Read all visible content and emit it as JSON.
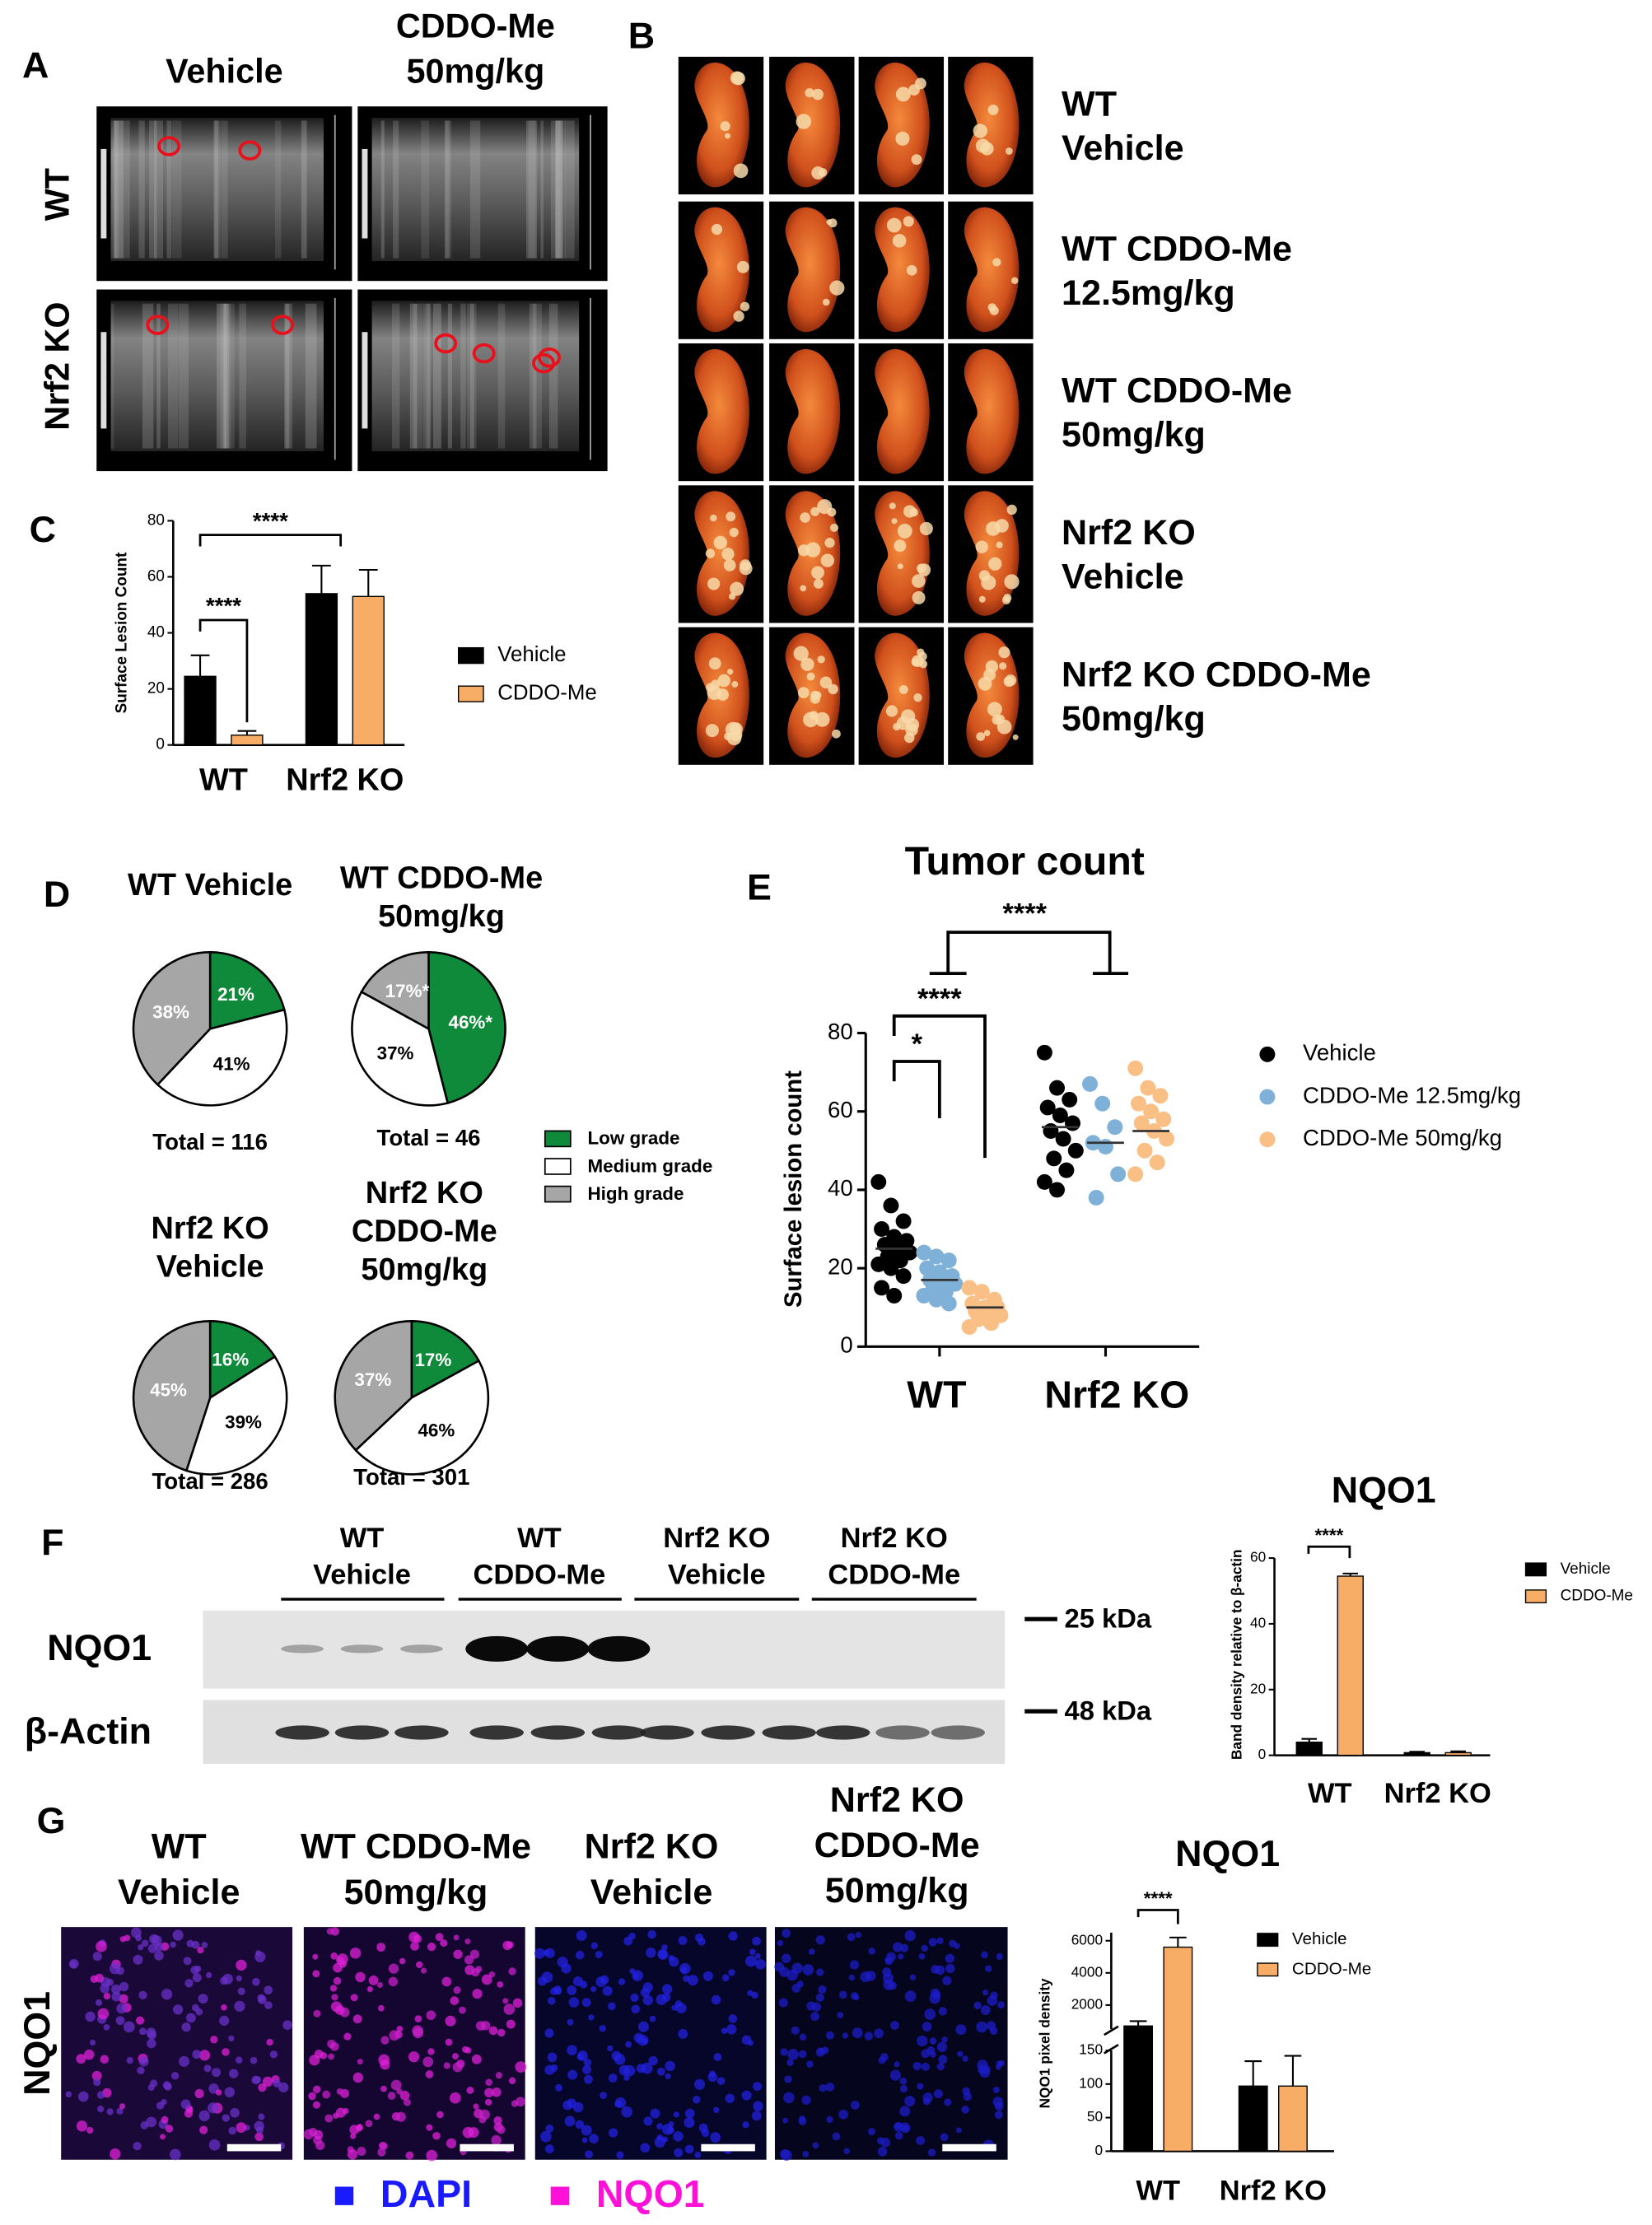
{
  "figure": {
    "panel_letters": [
      "A",
      "B",
      "C",
      "D",
      "E",
      "F",
      "G"
    ],
    "panel_a": {
      "columns": [
        [
          "Vehicle"
        ],
        [
          "CDDO-Me",
          "50mg/kg"
        ]
      ],
      "rows": [
        "WT",
        "Nrf2 KO"
      ]
    },
    "panel_b": {
      "rows": [
        [
          "WT",
          "Vehicle"
        ],
        [
          "WT CDDO-Me",
          "12.5mg/kg"
        ],
        [
          "WT CDDO-Me",
          "50mg/kg"
        ],
        [
          "Nrf2 KO",
          "Vehicle"
        ],
        [
          "Nrf2 KO CDDO-Me",
          "50mg/kg"
        ]
      ]
    },
    "panel_f": {
      "groups": [
        [
          "WT",
          "Vehicle"
        ],
        [
          "WT",
          "CDDO-Me"
        ],
        [
          "Nrf2 KO",
          "Vehicle"
        ],
        [
          "Nrf2 KO",
          "CDDO-Me"
        ]
      ],
      "rows": [
        "NQO1",
        "β-Actin"
      ],
      "markers": [
        "25 kDa",
        "48 kDa"
      ]
    },
    "panel_g": {
      "columns": [
        [
          "WT",
          "Vehicle"
        ],
        [
          "WT CDDO-Me",
          "50mg/kg"
        ],
        [
          "Nrf2 KO",
          "Vehicle"
        ],
        [
          "Nrf2 KO",
          "CDDO-Me",
          "50mg/kg"
        ]
      ],
      "row": "NQO1",
      "legend": [
        {
          "name": "DAPI",
          "color": "#1a1aff"
        },
        {
          "name": "NQO1",
          "color": "#ff10d8"
        }
      ]
    }
  },
  "chart_data": [
    {
      "type": "bar",
      "ylabel": "Surface Lesion Count",
      "categories": [
        "WT",
        "Nrf2 KO"
      ],
      "ylim": [
        0,
        80
      ],
      "yticks": [
        0,
        20,
        40,
        60,
        80
      ],
      "series": [
        {
          "name": "Vehicle",
          "color": "#000000",
          "values": [
            24.5,
            54
          ],
          "errors": [
            7.5,
            10
          ]
        },
        {
          "name": "CDDO-Me",
          "color": "#f8ad66",
          "values": [
            3.5,
            53
          ],
          "errors": [
            1.5,
            9.5
          ]
        }
      ],
      "annotations": [
        "****",
        "****"
      ]
    },
    {
      "type": "pie",
      "categories": [
        "Low grade",
        "Medium grade",
        "High grade"
      ],
      "colors": [
        "#0e8a3a",
        "#ffffff",
        "#a6a6a7"
      ],
      "pies": [
        {
          "title": [
            "WT Vehicle"
          ],
          "total": "Total = 116",
          "values": [
            21,
            41,
            38
          ],
          "value_labels": [
            "21%",
            "41%",
            "38%"
          ]
        },
        {
          "title": [
            "WT CDDO-Me",
            "50mg/kg"
          ],
          "total": "Total = 46",
          "values": [
            46,
            37,
            17
          ],
          "value_labels": [
            "46%*",
            "37%",
            "17%*"
          ]
        },
        {
          "title": [
            "Nrf2 KO",
            "Vehicle"
          ],
          "total": "Total = 286",
          "values": [
            16,
            39,
            45
          ],
          "value_labels": [
            "16%",
            "39%",
            "45%"
          ]
        },
        {
          "title": [
            "Nrf2 KO",
            "CDDO-Me",
            "50mg/kg"
          ],
          "total": "Total = 301",
          "values": [
            17,
            46,
            37
          ],
          "value_labels": [
            "17%",
            "46%",
            "37%"
          ]
        }
      ]
    },
    {
      "type": "strip",
      "title": "Tumor count",
      "ylabel": "Surface lesion count",
      "categories": [
        "WT",
        "Nrf2 KO"
      ],
      "ylim": [
        0,
        80
      ],
      "yticks": [
        0,
        20,
        40,
        60,
        80
      ],
      "series": [
        {
          "name": "Vehicle",
          "color": "#000000",
          "means": [
            25,
            56
          ],
          "values": [
            [
              42,
              36,
              32,
              30,
              28,
              27,
              26,
              25,
              24,
              23,
              22,
              21,
              20,
              18,
              15,
              13
            ],
            [
              75,
              66,
              63,
              61,
              59,
              57,
              55,
              53,
              50,
              48,
              45,
              42,
              40
            ]
          ]
        },
        {
          "name": "CDDO-Me 12.5mg/kg",
          "color": "#7eb0d8",
          "means": [
            17,
            52
          ],
          "values": [
            [
              24,
              23,
              22,
              20,
              19,
              18,
              17,
              17,
              16,
              15,
              14,
              13,
              12,
              11
            ],
            [
              67,
              62,
              56,
              52,
              51,
              44,
              38
            ]
          ]
        },
        {
          "name": "CDDO-Me 50mg/kg",
          "color": "#f9bf85",
          "means": [
            10,
            55
          ],
          "values": [
            [
              15,
              14,
              12,
              11,
              10,
              10,
              9,
              8,
              8,
              7,
              6,
              5
            ],
            [
              71,
              66,
              64,
              62,
              60,
              58,
              57,
              55,
              53,
              50,
              47,
              44
            ]
          ]
        }
      ],
      "annotations": [
        "*",
        "****",
        "****"
      ]
    },
    {
      "type": "bar",
      "title": "NQO1",
      "ylabel": "Band density relative to β-actin",
      "categories": [
        "WT",
        "Nrf2 KO"
      ],
      "ylim": [
        0,
        60
      ],
      "yticks": [
        0,
        20,
        40,
        60
      ],
      "series": [
        {
          "name": "Vehicle",
          "color": "#000000",
          "values": [
            4,
            0.8
          ],
          "errors": [
            1,
            0.3
          ]
        },
        {
          "name": "CDDO-Me",
          "color": "#f8ad66",
          "values": [
            54.5,
            0.8
          ],
          "errors": [
            0.8,
            0.4
          ]
        }
      ],
      "annotations": [
        "****"
      ]
    },
    {
      "type": "bar",
      "title": "NQO1",
      "ylabel": "NQO1 pixel density",
      "categories": [
        "WT",
        "Nrf2 KO"
      ],
      "ylim": [
        0,
        6500
      ],
      "axis_break": [
        150,
        500
      ],
      "yticks": [
        0,
        50,
        100,
        150,
        2000,
        4000,
        6000
      ],
      "series": [
        {
          "name": "Vehicle",
          "color": "#000000",
          "values": [
            700,
            97
          ],
          "errors": [
            300,
            37
          ]
        },
        {
          "name": "CDDO-Me",
          "color": "#f8ad66",
          "values": [
            5600,
            97
          ],
          "errors": [
            600,
            45
          ]
        }
      ],
      "annotations": [
        "****"
      ]
    }
  ]
}
